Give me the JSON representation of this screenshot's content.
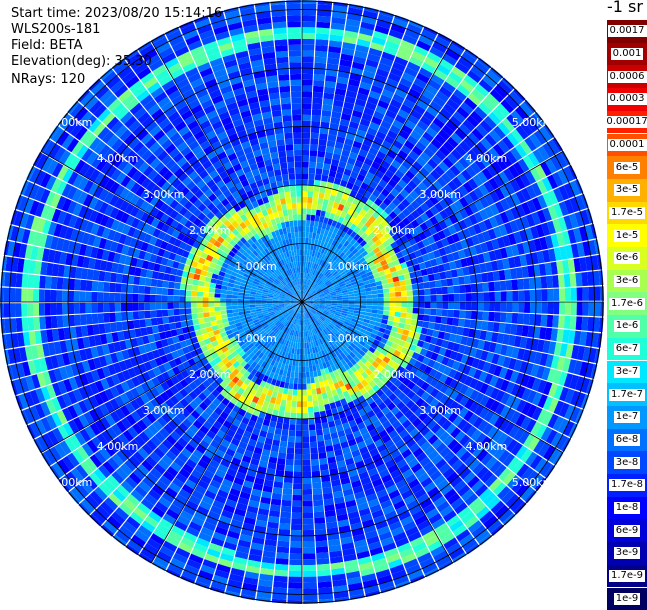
{
  "header": {
    "start_time": "Start time: 2023/08/20 15:14:16",
    "instrument": "WLS200s-181",
    "field": "Field: BETA",
    "elevation": "Elevation(deg): 35.30",
    "nrays": "NRays: 120"
  },
  "colorbar": {
    "unit": "-1 sr",
    "ticks": [
      {
        "label": "0.0017",
        "color": "#800000"
      },
      {
        "label": "0.001",
        "color": "#a00000"
      },
      {
        "label": "0.0006",
        "color": "#c80000"
      },
      {
        "label": "0.0003",
        "color": "#f00000"
      },
      {
        "label": "0.00017",
        "color": "#ff2000"
      },
      {
        "label": "0.0001",
        "color": "#ff5000"
      },
      {
        "label": "6e-5",
        "color": "#ff8000"
      },
      {
        "label": "3e-5",
        "color": "#ffb000"
      },
      {
        "label": "1.7e-5",
        "color": "#ffd800"
      },
      {
        "label": "1e-5",
        "color": "#ffff00"
      },
      {
        "label": "6e-6",
        "color": "#d8ff20"
      },
      {
        "label": "3e-6",
        "color": "#a8ff50"
      },
      {
        "label": "1.7e-6",
        "color": "#80ff80"
      },
      {
        "label": "1e-6",
        "color": "#50ffa8"
      },
      {
        "label": "6e-7",
        "color": "#20ffd8"
      },
      {
        "label": "3e-7",
        "color": "#00e8ff"
      },
      {
        "label": "1.7e-7",
        "color": "#00c0ff"
      },
      {
        "label": "1e-7",
        "color": "#0098ff"
      },
      {
        "label": "6e-8",
        "color": "#0070ff"
      },
      {
        "label": "3e-8",
        "color": "#0048ff"
      },
      {
        "label": "1.7e-8",
        "color": "#0020ff"
      },
      {
        "label": "1e-8",
        "color": "#0000ff"
      },
      {
        "label": "6e-9",
        "color": "#0000d8"
      },
      {
        "label": "3e-9",
        "color": "#0000b0"
      },
      {
        "label": "1.7e-9",
        "color": "#000088"
      },
      {
        "label": "1e-9",
        "color": "#000060"
      }
    ]
  },
  "chart_data": {
    "type": "heatmap",
    "projection": "polar (PPI scan)",
    "field": "BETA",
    "unit": "-1 sr",
    "n_rays": 120,
    "range_rings_km": [
      1.0,
      2.0,
      3.0,
      4.0,
      5.0
    ],
    "ring_labels": [
      "1.00km",
      "2.00km",
      "3.00km",
      "4.00km",
      "5.00km"
    ],
    "spoke_angles_deg": [
      0,
      30,
      60,
      90,
      120,
      150,
      180,
      210,
      240,
      270,
      300,
      330
    ],
    "scale": "log",
    "value_range": [
      1e-09,
      0.0017
    ],
    "features": [
      {
        "name": "high-backscatter ring",
        "range_km": [
          1.5,
          1.9
        ],
        "level": "1e-5 to 3e-5"
      },
      {
        "name": "faint outer ring",
        "range_km": [
          4.5,
          4.7
        ],
        "level": "1.7e-6"
      },
      {
        "name": "background",
        "level": "3e-8 to 1e-7"
      }
    ],
    "grid": true
  }
}
